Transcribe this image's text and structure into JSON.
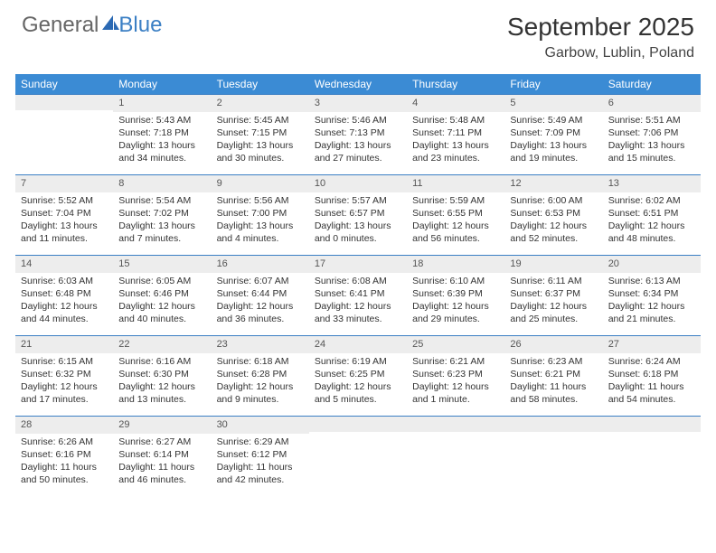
{
  "logo": {
    "text1": "General",
    "text2": "Blue",
    "sail_color": "#2b69b3"
  },
  "title": "September 2025",
  "location": "Garbow, Lublin, Poland",
  "header_bg": "#3b8bd4",
  "weekday_bg": "#ededed",
  "border_color": "#3b7fc4",
  "weekdays": [
    "Sunday",
    "Monday",
    "Tuesday",
    "Wednesday",
    "Thursday",
    "Friday",
    "Saturday"
  ],
  "weeks": [
    [
      {
        "blank": true
      },
      {
        "n": "1",
        "sr": "5:43 AM",
        "ss": "7:18 PM",
        "dl": "13 hours and 34 minutes."
      },
      {
        "n": "2",
        "sr": "5:45 AM",
        "ss": "7:15 PM",
        "dl": "13 hours and 30 minutes."
      },
      {
        "n": "3",
        "sr": "5:46 AM",
        "ss": "7:13 PM",
        "dl": "13 hours and 27 minutes."
      },
      {
        "n": "4",
        "sr": "5:48 AM",
        "ss": "7:11 PM",
        "dl": "13 hours and 23 minutes."
      },
      {
        "n": "5",
        "sr": "5:49 AM",
        "ss": "7:09 PM",
        "dl": "13 hours and 19 minutes."
      },
      {
        "n": "6",
        "sr": "5:51 AM",
        "ss": "7:06 PM",
        "dl": "13 hours and 15 minutes."
      }
    ],
    [
      {
        "n": "7",
        "sr": "5:52 AM",
        "ss": "7:04 PM",
        "dl": "13 hours and 11 minutes."
      },
      {
        "n": "8",
        "sr": "5:54 AM",
        "ss": "7:02 PM",
        "dl": "13 hours and 7 minutes."
      },
      {
        "n": "9",
        "sr": "5:56 AM",
        "ss": "7:00 PM",
        "dl": "13 hours and 4 minutes."
      },
      {
        "n": "10",
        "sr": "5:57 AM",
        "ss": "6:57 PM",
        "dl": "13 hours and 0 minutes."
      },
      {
        "n": "11",
        "sr": "5:59 AM",
        "ss": "6:55 PM",
        "dl": "12 hours and 56 minutes."
      },
      {
        "n": "12",
        "sr": "6:00 AM",
        "ss": "6:53 PM",
        "dl": "12 hours and 52 minutes."
      },
      {
        "n": "13",
        "sr": "6:02 AM",
        "ss": "6:51 PM",
        "dl": "12 hours and 48 minutes."
      }
    ],
    [
      {
        "n": "14",
        "sr": "6:03 AM",
        "ss": "6:48 PM",
        "dl": "12 hours and 44 minutes."
      },
      {
        "n": "15",
        "sr": "6:05 AM",
        "ss": "6:46 PM",
        "dl": "12 hours and 40 minutes."
      },
      {
        "n": "16",
        "sr": "6:07 AM",
        "ss": "6:44 PM",
        "dl": "12 hours and 36 minutes."
      },
      {
        "n": "17",
        "sr": "6:08 AM",
        "ss": "6:41 PM",
        "dl": "12 hours and 33 minutes."
      },
      {
        "n": "18",
        "sr": "6:10 AM",
        "ss": "6:39 PM",
        "dl": "12 hours and 29 minutes."
      },
      {
        "n": "19",
        "sr": "6:11 AM",
        "ss": "6:37 PM",
        "dl": "12 hours and 25 minutes."
      },
      {
        "n": "20",
        "sr": "6:13 AM",
        "ss": "6:34 PM",
        "dl": "12 hours and 21 minutes."
      }
    ],
    [
      {
        "n": "21",
        "sr": "6:15 AM",
        "ss": "6:32 PM",
        "dl": "12 hours and 17 minutes."
      },
      {
        "n": "22",
        "sr": "6:16 AM",
        "ss": "6:30 PM",
        "dl": "12 hours and 13 minutes."
      },
      {
        "n": "23",
        "sr": "6:18 AM",
        "ss": "6:28 PM",
        "dl": "12 hours and 9 minutes."
      },
      {
        "n": "24",
        "sr": "6:19 AM",
        "ss": "6:25 PM",
        "dl": "12 hours and 5 minutes."
      },
      {
        "n": "25",
        "sr": "6:21 AM",
        "ss": "6:23 PM",
        "dl": "12 hours and 1 minute."
      },
      {
        "n": "26",
        "sr": "6:23 AM",
        "ss": "6:21 PM",
        "dl": "11 hours and 58 minutes."
      },
      {
        "n": "27",
        "sr": "6:24 AM",
        "ss": "6:18 PM",
        "dl": "11 hours and 54 minutes."
      }
    ],
    [
      {
        "n": "28",
        "sr": "6:26 AM",
        "ss": "6:16 PM",
        "dl": "11 hours and 50 minutes."
      },
      {
        "n": "29",
        "sr": "6:27 AM",
        "ss": "6:14 PM",
        "dl": "11 hours and 46 minutes."
      },
      {
        "n": "30",
        "sr": "6:29 AM",
        "ss": "6:12 PM",
        "dl": "11 hours and 42 minutes."
      },
      {
        "blank": true
      },
      {
        "blank": true
      },
      {
        "blank": true
      },
      {
        "blank": true
      }
    ]
  ],
  "labels": {
    "sunrise": "Sunrise:",
    "sunset": "Sunset:",
    "daylight": "Daylight:"
  }
}
